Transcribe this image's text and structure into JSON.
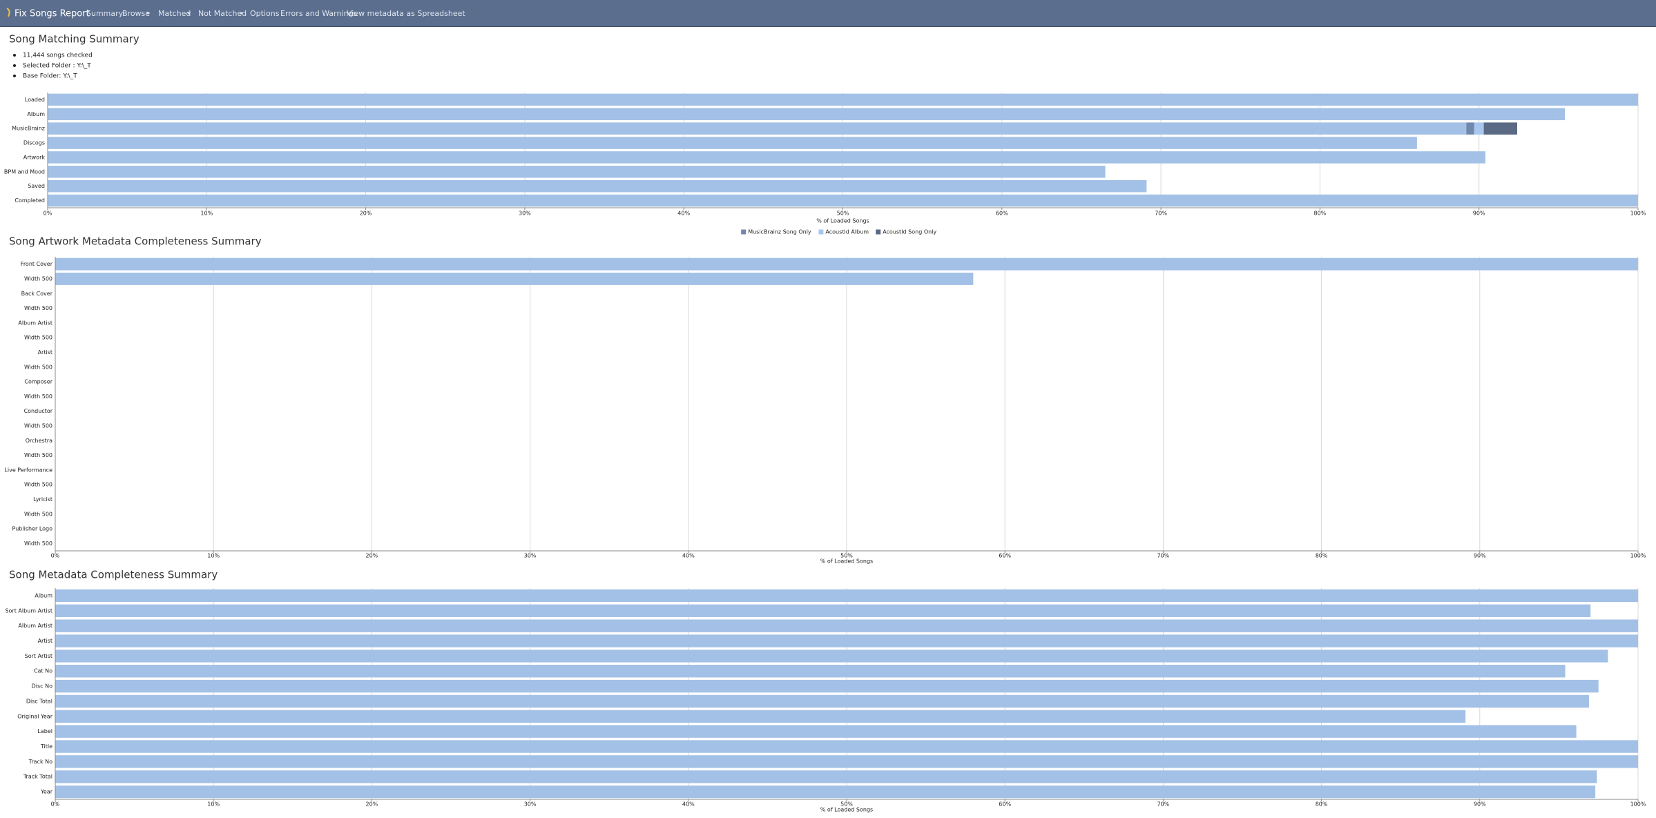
{
  "nav": {
    "brand": "Fix Songs Report",
    "items": [
      "Summary",
      "Browse",
      "Matched",
      "Not Matched",
      "Options",
      "Errors and Warnings",
      "View metadata as Spreadsheet"
    ]
  },
  "summary": {
    "title": "Song Matching Summary",
    "items": [
      "11,444 songs checked",
      "Selected Folder : Y:\\_T",
      "Base Folder: Y:\\_T"
    ]
  },
  "chart_data": [
    {
      "type": "barh",
      "x_label": "% of Loaded Songs",
      "categories": [
        "Loaded",
        "Album",
        "MusicBrainz",
        "Discogs",
        "Artwork",
        "BPM and Mood",
        "Saved",
        "Completed"
      ],
      "series": [
        {
          "color": "#a3c1e6",
          "values": [
            100,
            95.4,
            89.2,
            86.1,
            90.4,
            66.5,
            69.1,
            100
          ]
        },
        {
          "name": "MusicBrainz Song Only",
          "color": "#7088ad",
          "values": [
            null,
            null,
            0.5,
            null,
            null,
            null,
            null,
            null
          ]
        },
        {
          "name": "AcoustId Album",
          "color": "#a9c7ee",
          "values": [
            null,
            null,
            0.6,
            null,
            null,
            null,
            null,
            null
          ]
        },
        {
          "name": "AcoustId Song Only",
          "color": "#5a6a85",
          "values": [
            null,
            null,
            2.1,
            null,
            null,
            null,
            null,
            null
          ]
        }
      ],
      "xlim": [
        0,
        100
      ],
      "xticks": [
        {
          "value": 0,
          "label": "0%"
        },
        {
          "value": 10,
          "label": "10%"
        },
        {
          "value": 20,
          "label": "20%"
        },
        {
          "value": 30,
          "label": "30%"
        },
        {
          "value": 40,
          "label": "40%"
        },
        {
          "value": 50,
          "label": "50%"
        },
        {
          "value": 60,
          "label": "60%"
        },
        {
          "value": 70,
          "label": "70%"
        },
        {
          "value": 80,
          "label": "80%"
        },
        {
          "value": 90,
          "label": "90%"
        },
        {
          "value": 100,
          "label": "100%"
        }
      ],
      "grid": true,
      "legend": "bottom"
    },
    {
      "type": "barh",
      "title": "Song Artwork Metadata Completeness Summary",
      "x_label": "% of Loaded Songs",
      "categories": [
        "Front Cover",
        "Width 500",
        "Back Cover",
        "Width 500",
        "Album Artist",
        "Width 500",
        "Artist",
        "Width 500",
        "Composer",
        "Width 500",
        "Conductor",
        "Width 500",
        "Orchestra",
        "Width 500",
        "Live Performance",
        "Width 500",
        "Lyricist",
        "Width 500",
        "Publisher Logo",
        "Width 500"
      ],
      "values": [
        100,
        58.0,
        0,
        0,
        0,
        0,
        0,
        0,
        0,
        0,
        0,
        0,
        0,
        0,
        0,
        0,
        0,
        0,
        0,
        0
      ],
      "color": "#a3c1e6",
      "xlim": [
        0,
        100
      ],
      "xticks": [
        {
          "value": 0,
          "label": "0%"
        },
        {
          "value": 10,
          "label": "10%"
        },
        {
          "value": 20,
          "label": "20%"
        },
        {
          "value": 30,
          "label": "30%"
        },
        {
          "value": 40,
          "label": "40%"
        },
        {
          "value": 50,
          "label": "50%"
        },
        {
          "value": 60,
          "label": "60%"
        },
        {
          "value": 70,
          "label": "70%"
        },
        {
          "value": 80,
          "label": "80%"
        },
        {
          "value": 90,
          "label": "90%"
        },
        {
          "value": 100,
          "label": "100%"
        }
      ],
      "grid": true
    },
    {
      "type": "barh",
      "title": "Song Metadata Completeness Summary",
      "x_label": "% of Loaded Songs",
      "categories": [
        "Album",
        "Sort Album Artist",
        "Album Artist",
        "Artist",
        "Sort Artist",
        "Cat No",
        "Disc No",
        "Disc Total",
        "Original Year",
        "Label",
        "Title",
        "Track No",
        "Track Total",
        "Year"
      ],
      "values": [
        100,
        97.0,
        100,
        100,
        98.1,
        95.4,
        97.5,
        96.9,
        89.1,
        96.1,
        100,
        100,
        97.4,
        97.3
      ],
      "color": "#a3c1e6",
      "xlim": [
        0,
        100
      ],
      "xticks": [
        {
          "value": 0,
          "label": "0%"
        },
        {
          "value": 10,
          "label": "10%"
        },
        {
          "value": 20,
          "label": "20%"
        },
        {
          "value": 30,
          "label": "30%"
        },
        {
          "value": 40,
          "label": "40%"
        },
        {
          "value": 50,
          "label": "50%"
        },
        {
          "value": 60,
          "label": "60%"
        },
        {
          "value": 70,
          "label": "70%"
        },
        {
          "value": 80,
          "label": "80%"
        },
        {
          "value": 90,
          "label": "90%"
        },
        {
          "value": 100,
          "label": "100%"
        }
      ],
      "grid": true
    }
  ]
}
